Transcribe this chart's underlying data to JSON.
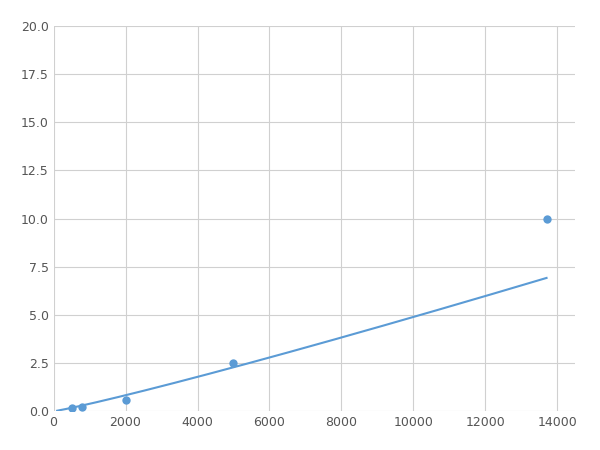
{
  "x_points": [
    100,
    500,
    800,
    2000,
    5000,
    13700
  ],
  "y_points": [
    0.05,
    0.15,
    0.2,
    0.6,
    2.5,
    10.0
  ],
  "line_color": "#5b9bd5",
  "marker_points_x": [
    500,
    800,
    2000,
    5000,
    13700
  ],
  "marker_points_y": [
    0.15,
    0.2,
    0.6,
    2.5,
    10.0
  ],
  "marker_color": "#5b9bd5",
  "marker_size": 6,
  "xlim": [
    0,
    14500
  ],
  "ylim": [
    0,
    20
  ],
  "xticks": [
    0,
    2000,
    4000,
    6000,
    8000,
    10000,
    12000,
    14000
  ],
  "yticks": [
    0.0,
    2.5,
    5.0,
    7.5,
    10.0,
    12.5,
    15.0,
    17.5,
    20.0
  ],
  "grid_color": "#d0d0d0",
  "background_color": "#ffffff",
  "figsize": [
    6.0,
    4.5
  ],
  "dpi": 100
}
